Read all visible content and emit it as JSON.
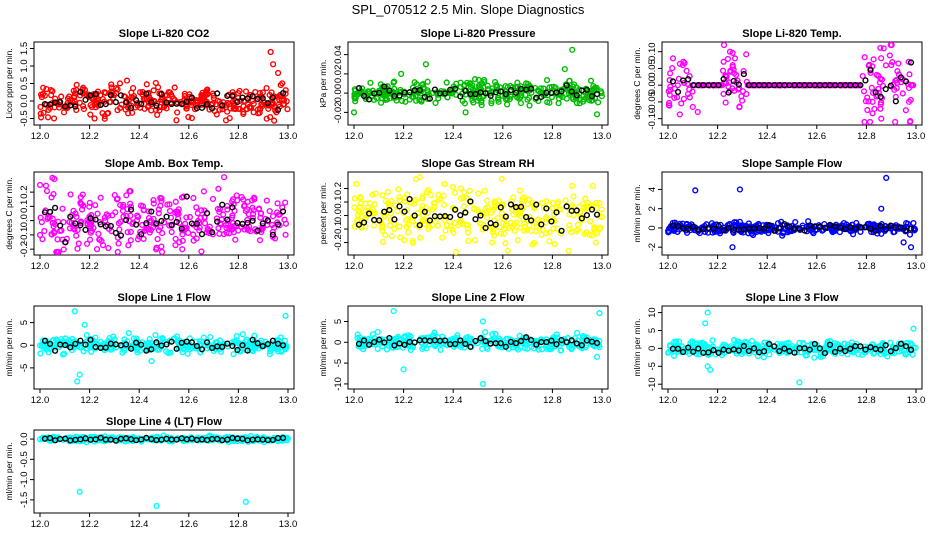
{
  "figure_title": "SPL_070512  2.5 Min. Slope Diagnostics",
  "colors": {
    "red": "#ff0000",
    "green": "#00bb00",
    "magenta": "#ff00ff",
    "yellow": "#ffff00",
    "blue": "#0000ff",
    "cyan": "#00ffff",
    "black": "#000000"
  },
  "chart_data": [
    {
      "type": "scatter",
      "title": "Slope Li-820 CO2",
      "ylabel": "Licor ppm per min.",
      "xlim": [
        12.0,
        13.0
      ],
      "ylim": [
        -0.6,
        1.6
      ],
      "xticks": [
        "12.0",
        "12.2",
        "12.4",
        "12.6",
        "12.8",
        "13.0"
      ],
      "yticks": [
        -0.5,
        0.0,
        0.5,
        1.0,
        1.5
      ],
      "ytick_labels": [
        "-0.5",
        "0.0",
        "0.5",
        "1.0",
        "1.5"
      ],
      "color": "red",
      "center": 0.0,
      "spread": 0.22,
      "outliers": [
        [
          12.93,
          1.4
        ],
        [
          12.94,
          1.05
        ],
        [
          12.96,
          0.8
        ],
        [
          12.22,
          -0.5
        ],
        [
          12.55,
          -0.55
        ]
      ]
    },
    {
      "type": "scatter",
      "title": "Slope Li-820 Pressure",
      "ylabel": "kPa per min.",
      "xlim": [
        12.0,
        13.0
      ],
      "ylim": [
        -0.03,
        0.05
      ],
      "xticks": [
        "12.0",
        "12.2",
        "12.4",
        "12.6",
        "12.8",
        "13.0"
      ],
      "yticks": [
        -0.02,
        0.0,
        0.02,
        0.04
      ],
      "ytick_labels": [
        "-0.02",
        "0.00",
        "0.02",
        "0.04"
      ],
      "color": "green",
      "center": 0.0,
      "spread": 0.006,
      "outliers": [
        [
          12.88,
          0.045
        ],
        [
          12.85,
          0.025
        ],
        [
          12.29,
          0.03
        ],
        [
          12.19,
          0.02
        ],
        [
          12.0,
          -0.02
        ],
        [
          12.98,
          -0.022
        ],
        [
          12.45,
          -0.02
        ]
      ]
    },
    {
      "type": "scatter",
      "title": "Slope Li-820 Temp.",
      "ylabel": "degrees C per min.",
      "xlim": [
        12.0,
        13.0
      ],
      "ylim": [
        -0.11,
        0.12
      ],
      "xticks": [
        "12.0",
        "12.2",
        "12.4",
        "12.6",
        "12.8",
        "13.0"
      ],
      "yticks": [
        -0.1,
        -0.05,
        0.0,
        0.05,
        0.1
      ],
      "ytick_labels": [
        "-0.10",
        "-0.05",
        "0.00",
        "0.05",
        "0.10"
      ],
      "color": "magenta",
      "center": 0.0,
      "spread": 0.0,
      "outliers": [
        [
          12.87,
          0.11
        ],
        [
          12.02,
          0.08
        ],
        [
          12.06,
          0.06
        ],
        [
          12.25,
          0.1
        ],
        [
          12.27,
          0.08
        ],
        [
          12.86,
          -0.1
        ],
        [
          12.12,
          -0.08
        ],
        [
          12.9,
          0.06
        ]
      ],
      "bursts": [
        [
          12.0,
          12.1,
          0.04
        ],
        [
          12.22,
          12.32,
          0.05
        ],
        [
          12.78,
          12.98,
          0.06
        ]
      ]
    },
    {
      "type": "scatter",
      "title": "Slope Amb. Box Temp.",
      "ylabel": "degrees C per min.",
      "xlim": [
        12.0,
        13.0
      ],
      "ylim": [
        -0.22,
        0.32
      ],
      "xticks": [
        "12.0",
        "12.2",
        "12.4",
        "12.6",
        "12.8",
        "13.0"
      ],
      "yticks": [
        -0.2,
        -0.1,
        0.0,
        0.1,
        0.2
      ],
      "ytick_labels": [
        "-0.2",
        "-0.1",
        "0.0",
        "0.1",
        "0.2"
      ],
      "color": "magenta",
      "center": 0.0,
      "spread": 0.1,
      "outliers": [
        [
          12.05,
          0.3
        ],
        [
          12.0,
          0.25
        ],
        [
          12.23,
          -0.2
        ],
        [
          12.47,
          -0.19
        ]
      ]
    },
    {
      "type": "scatter",
      "title": "Slope Gas Stream RH",
      "ylabel": "percent per min.",
      "xlim": [
        12.0,
        13.0
      ],
      "ylim": [
        -0.27,
        0.3
      ],
      "xticks": [
        "12.0",
        "12.2",
        "12.4",
        "12.6",
        "12.8",
        "13.0"
      ],
      "yticks": [
        -0.2,
        -0.1,
        0.0,
        0.1,
        0.2
      ],
      "ytick_labels": [
        "-0.2",
        "-0.1",
        "0.0",
        "0.1",
        "0.2"
      ],
      "color": "yellow",
      "center": 0.0,
      "spread": 0.1,
      "outliers": [
        [
          12.25,
          0.27
        ],
        [
          12.62,
          -0.26
        ],
        [
          12.88,
          0.22
        ]
      ]
    },
    {
      "type": "scatter",
      "title": "Slope Sample Flow",
      "ylabel": "ml/min per min.",
      "xlim": [
        12.0,
        13.0
      ],
      "ylim": [
        -2.5,
        5.5
      ],
      "xticks": [
        "12.0",
        "12.2",
        "12.4",
        "12.6",
        "12.8",
        "13.0"
      ],
      "yticks": [
        -2,
        0,
        2,
        4
      ],
      "ytick_labels": [
        "-2",
        "0",
        "2",
        "4"
      ],
      "color": "blue",
      "center": 0.0,
      "spread": 0.3,
      "outliers": [
        [
          12.88,
          5.2
        ],
        [
          12.11,
          3.9
        ],
        [
          12.29,
          4.0
        ],
        [
          12.86,
          2.0
        ],
        [
          12.26,
          -2.0
        ],
        [
          12.98,
          -2.0
        ],
        [
          12.95,
          -1.5
        ]
      ]
    },
    {
      "type": "scatter",
      "title": "Slope Line 1 Flow",
      "ylabel": "ml/min per min.",
      "xlim": [
        12.0,
        13.0
      ],
      "ylim": [
        -9,
        8
      ],
      "xticks": [
        "12.0",
        "12.2",
        "12.4",
        "12.6",
        "12.8",
        "13.0"
      ],
      "yticks": [
        -5,
        0,
        5
      ],
      "ytick_labels": [
        "-5",
        "0",
        "5"
      ],
      "color": "cyan",
      "center": 0.0,
      "spread": 0.9,
      "outliers": [
        [
          12.14,
          7.5
        ],
        [
          12.18,
          4.5
        ],
        [
          12.16,
          -6.5
        ],
        [
          12.15,
          -8.0
        ],
        [
          12.99,
          6.5
        ],
        [
          12.45,
          -3.5
        ]
      ]
    },
    {
      "type": "scatter",
      "title": "Slope Line 2 Flow",
      "ylabel": "ml/min per min.",
      "xlim": [
        12.0,
        13.0
      ],
      "ylim": [
        -10.5,
        8
      ],
      "xticks": [
        "12.0",
        "12.2",
        "12.4",
        "12.6",
        "12.8",
        "13.0"
      ],
      "yticks": [
        -10,
        -5,
        0,
        5
      ],
      "ytick_labels": [
        "-10",
        "-5",
        "0",
        "5"
      ],
      "color": "cyan",
      "center": 0.0,
      "spread": 0.9,
      "outliers": [
        [
          12.16,
          7.5
        ],
        [
          12.52,
          5.0
        ],
        [
          12.2,
          -6.5
        ],
        [
          12.52,
          -10.0
        ],
        [
          12.99,
          7.0
        ],
        [
          12.98,
          -3.5
        ]
      ]
    },
    {
      "type": "scatter",
      "title": "Slope Line 3 Flow",
      "ylabel": "ml/min per min.",
      "xlim": [
        12.0,
        13.0
      ],
      "ylim": [
        -10.5,
        11
      ],
      "xticks": [
        "12.0",
        "12.2",
        "12.4",
        "12.6",
        "12.8",
        "13.0"
      ],
      "yticks": [
        -10,
        -5,
        0,
        5,
        10
      ],
      "ytick_labels": [
        "-10",
        "-5",
        "0",
        "5",
        "10"
      ],
      "color": "cyan",
      "center": 0.0,
      "spread": 1.0,
      "outliers": [
        [
          12.16,
          10.0
        ],
        [
          12.15,
          7.0
        ],
        [
          12.17,
          -6.0
        ],
        [
          12.16,
          -5.0
        ],
        [
          12.53,
          -9.5
        ],
        [
          12.99,
          5.5
        ]
      ]
    },
    {
      "type": "scatter",
      "title": "Slope Line 4 (LT) Flow",
      "ylabel": "ml/min per min.",
      "xlim": [
        12.0,
        13.0
      ],
      "ylim": [
        -1.75,
        0.15
      ],
      "xticks": [
        "12.0",
        "12.2",
        "12.4",
        "12.6",
        "12.8",
        "13.0"
      ],
      "yticks": [
        -1.5,
        -1.0,
        -0.5,
        0.0
      ],
      "ytick_labels": [
        "-1.5",
        "-1.0",
        "-0.5",
        "0.0"
      ],
      "color": "cyan",
      "center": 0.0,
      "spread": 0.03,
      "outliers": [
        [
          12.16,
          -1.3
        ],
        [
          12.47,
          -1.65
        ],
        [
          12.83,
          -1.55
        ],
        [
          12.16,
          -0.05
        ]
      ]
    }
  ]
}
